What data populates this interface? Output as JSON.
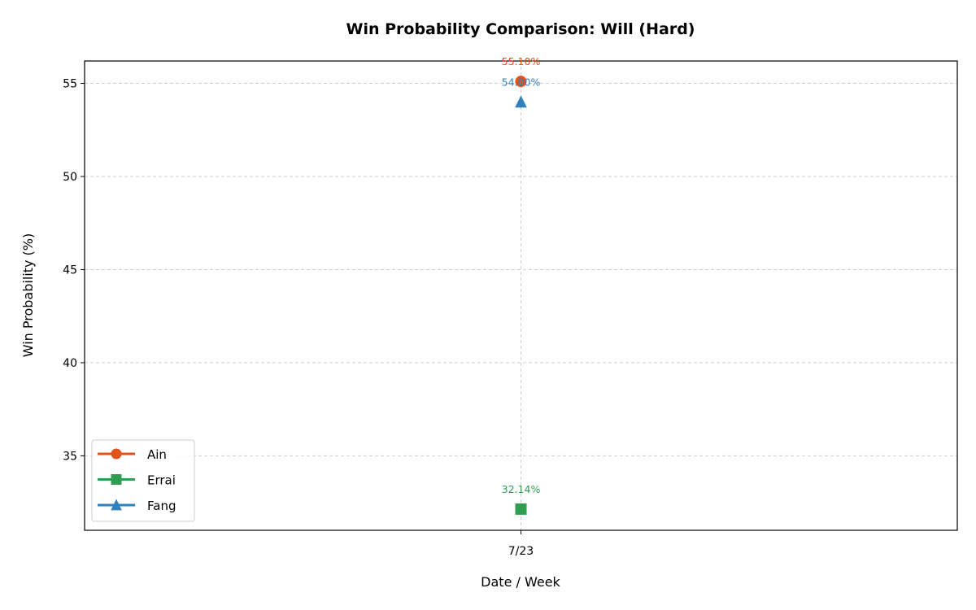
{
  "chart_data": {
    "type": "line",
    "title": "Win Probability Comparison: Will (Hard)",
    "xlabel": "Date / Week",
    "ylabel": "Win Probability (%)",
    "categories": [
      "7/23"
    ],
    "yticks": [
      35,
      40,
      45,
      50,
      55
    ],
    "ylim": [
      31.0,
      56.2
    ],
    "grid": true,
    "legend_position": "lower-left",
    "series": [
      {
        "name": "Ain",
        "values": [
          55.1
        ],
        "labels": [
          "55.10%"
        ],
        "color": "#e0531a",
        "marker": "circle"
      },
      {
        "name": "Errai",
        "values": [
          32.14
        ],
        "labels": [
          "32.14%"
        ],
        "color": "#2f9e50",
        "marker": "square"
      },
      {
        "name": "Fang",
        "values": [
          54.0
        ],
        "labels": [
          "54.00%"
        ],
        "color": "#3181bd",
        "marker": "triangle"
      }
    ]
  }
}
